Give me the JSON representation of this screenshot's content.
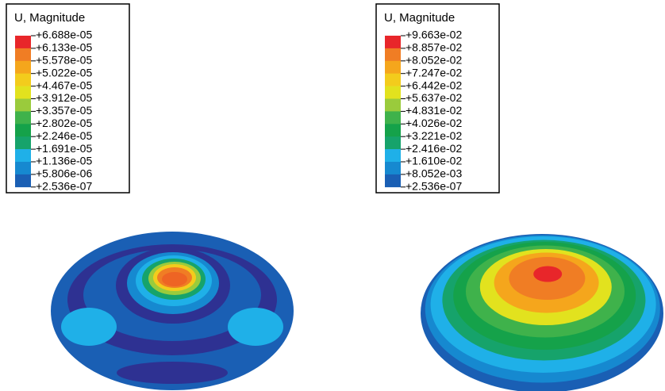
{
  "panels": [
    {
      "legend": {
        "title": "U, Magnitude",
        "labels": [
          "+6.688e-05",
          "+6.133e-05",
          "+5.578e-05",
          "+5.022e-05",
          "+4.467e-05",
          "+3.912e-05",
          "+3.357e-05",
          "+2.802e-05",
          "+2.246e-05",
          "+1.691e-05",
          "+1.136e-05",
          "+5.806e-06",
          "+2.536e-07"
        ]
      }
    },
    {
      "legend": {
        "title": "U, Magnitude",
        "labels": [
          "+9.663e-02",
          "+8.857e-02",
          "+8.052e-02",
          "+7.247e-02",
          "+6.442e-02",
          "+5.637e-02",
          "+4.831e-02",
          "+4.026e-02",
          "+3.221e-02",
          "+2.416e-02",
          "+1.610e-02",
          "+8.052e-03",
          "+2.536e-07"
        ]
      }
    }
  ]
}
